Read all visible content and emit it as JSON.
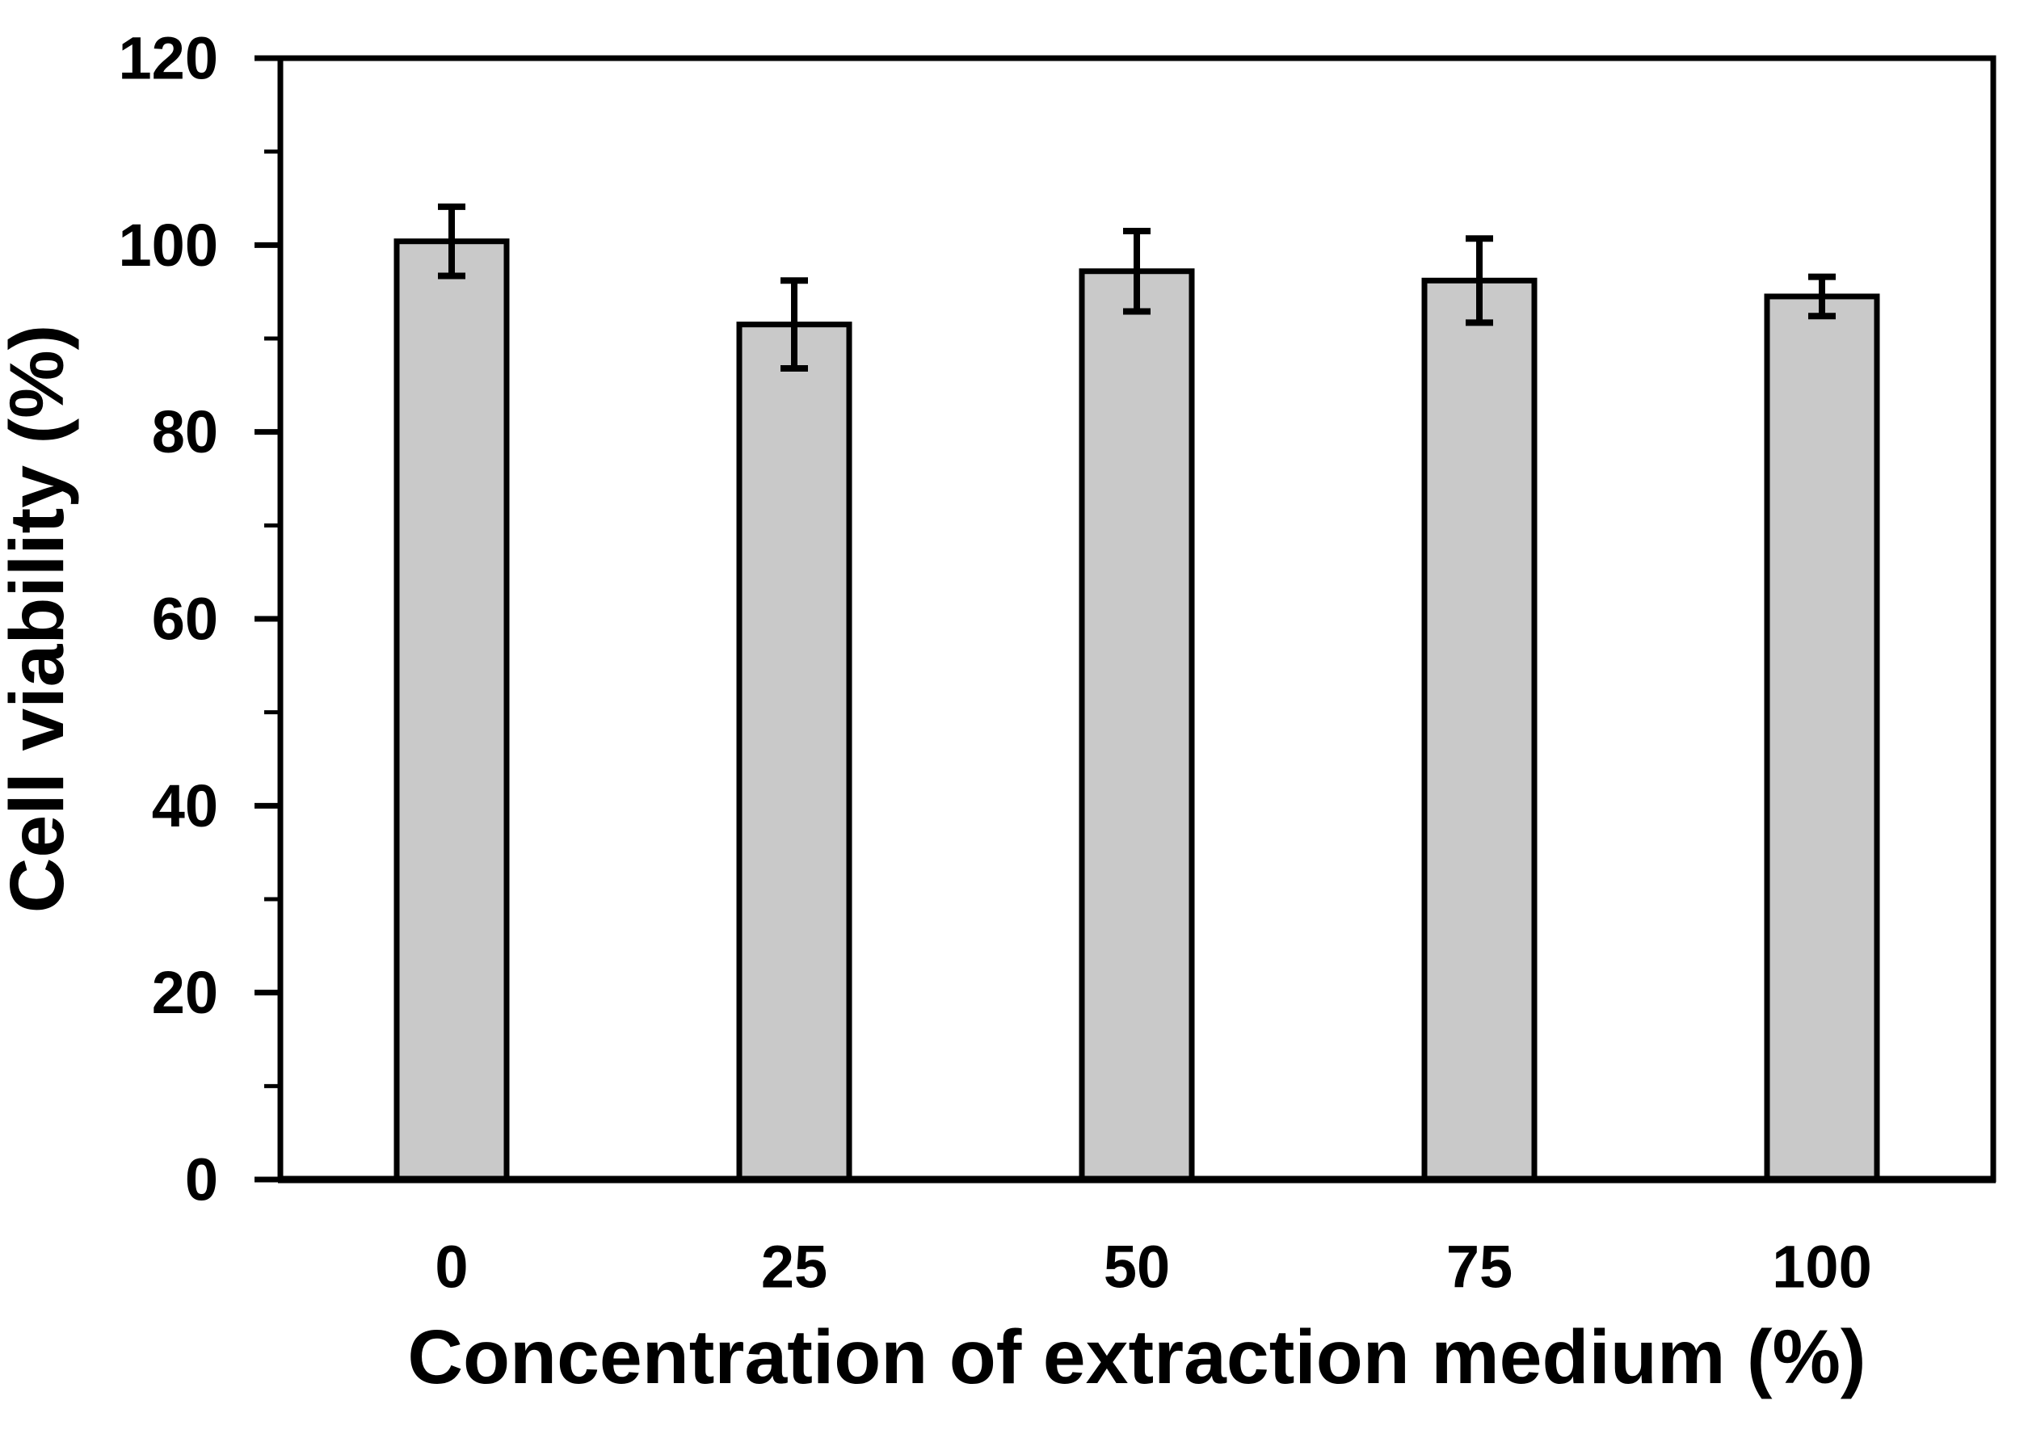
{
  "figure_background": "#ffffff",
  "chart_data": {
    "type": "bar",
    "title": "",
    "categories": [
      "0",
      "25",
      "50",
      "75",
      "100"
    ],
    "values": [
      100.4,
      91.5,
      97.2,
      96.2,
      94.5
    ],
    "error_bars": [
      3.7,
      4.7,
      4.3,
      4.5,
      2.1
    ],
    "xlabel": "Concentration of extraction medium (%)",
    "ylabel": "Cell viability (%)",
    "ylim": [
      0,
      120
    ],
    "yticks": [
      0,
      20,
      40,
      60,
      80,
      100,
      120
    ],
    "ytick_minor_step": 10,
    "grid": false,
    "legend": false,
    "bar_fill": "#c9c9c9",
    "bar_stroke": "#000000",
    "axis_color": "#000000"
  }
}
